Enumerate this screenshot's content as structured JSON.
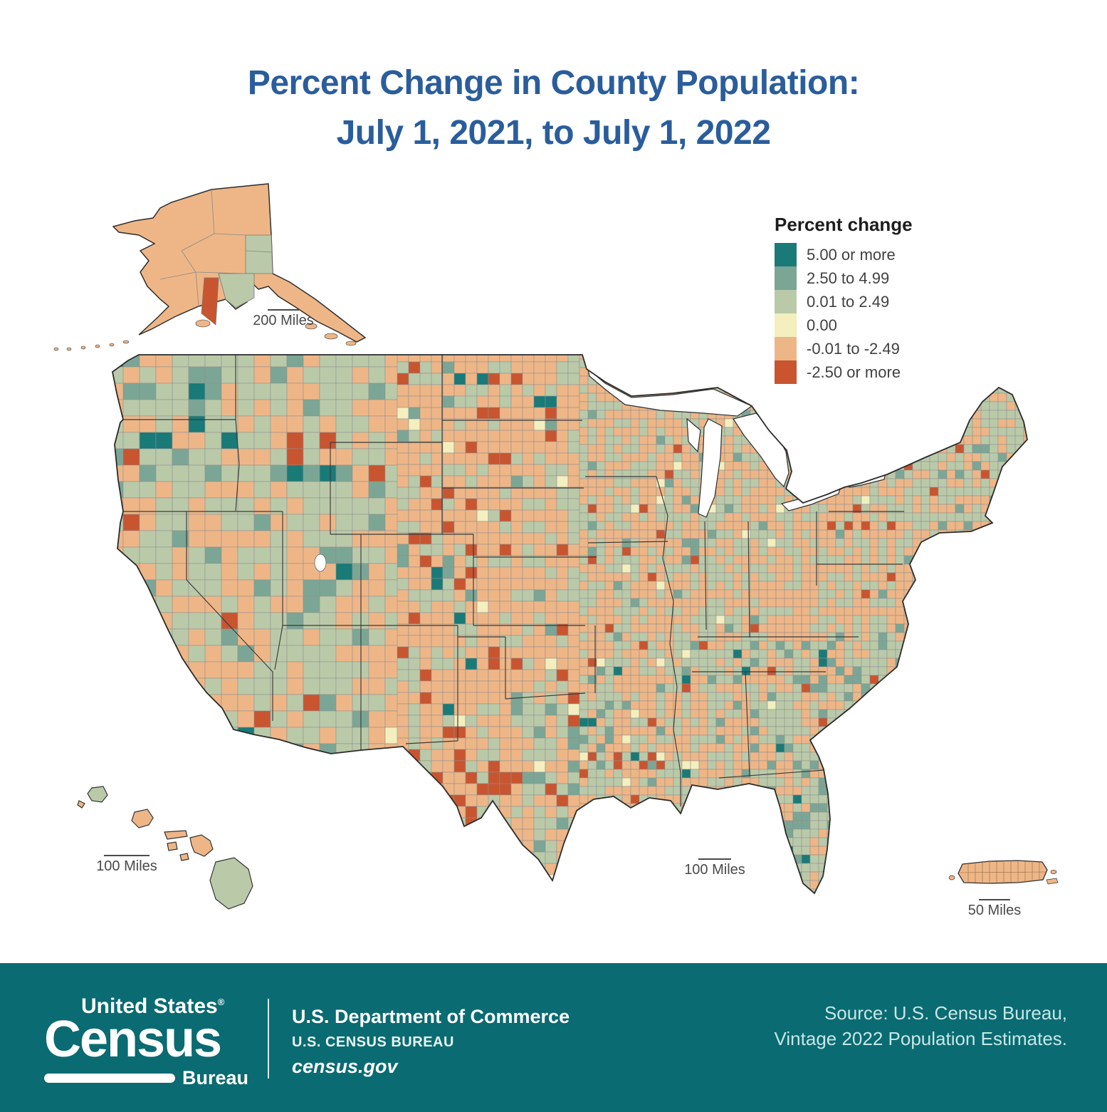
{
  "title": {
    "line1": "Percent Change in County Population:",
    "line2": "July 1, 2021, to July 1, 2022"
  },
  "legend": {
    "title": "Percent change",
    "items": [
      {
        "label": "5.00 or more",
        "color": "#197a77"
      },
      {
        "label": "2.50 to 4.99",
        "color": "#7ba695"
      },
      {
        "label": "0.01 to 2.49",
        "color": "#bacaa9"
      },
      {
        "label": "0.00",
        "color": "#f3efbe"
      },
      {
        "label": "-0.01 to -2.49",
        "color": "#eeb687"
      },
      {
        "label": "-2.50 or more",
        "color": "#c8552f"
      }
    ]
  },
  "map": {
    "scale_bars": {
      "alaska": "200 Miles",
      "hawaii": "100 Miles",
      "main": "100 Miles",
      "puerto_rico": "50 Miles"
    }
  },
  "footer": {
    "logo": {
      "top": "United States",
      "reg": "®",
      "main": "Census",
      "sub": "Bureau"
    },
    "agency_line1": "U.S. Department of Commerce",
    "agency_line2": "U.S. CENSUS BUREAU",
    "agency_line3": "census.gov",
    "source_line1": "Source: U.S. Census Bureau,",
    "source_line2": "Vintage 2022 Population Estimates."
  },
  "colors": {
    "title_text": "#2a5d9c",
    "footer_background": "#0a6b72",
    "footer_text": "#ffffff",
    "source_text": "#c7e6e6",
    "legend_text": "#414141",
    "county_border": "#8f8f8f",
    "state_border": "#3a3a3a",
    "map_outline": "#2b2b2b",
    "scale_bar": "#4a4a4a",
    "water": "#ffffff"
  }
}
